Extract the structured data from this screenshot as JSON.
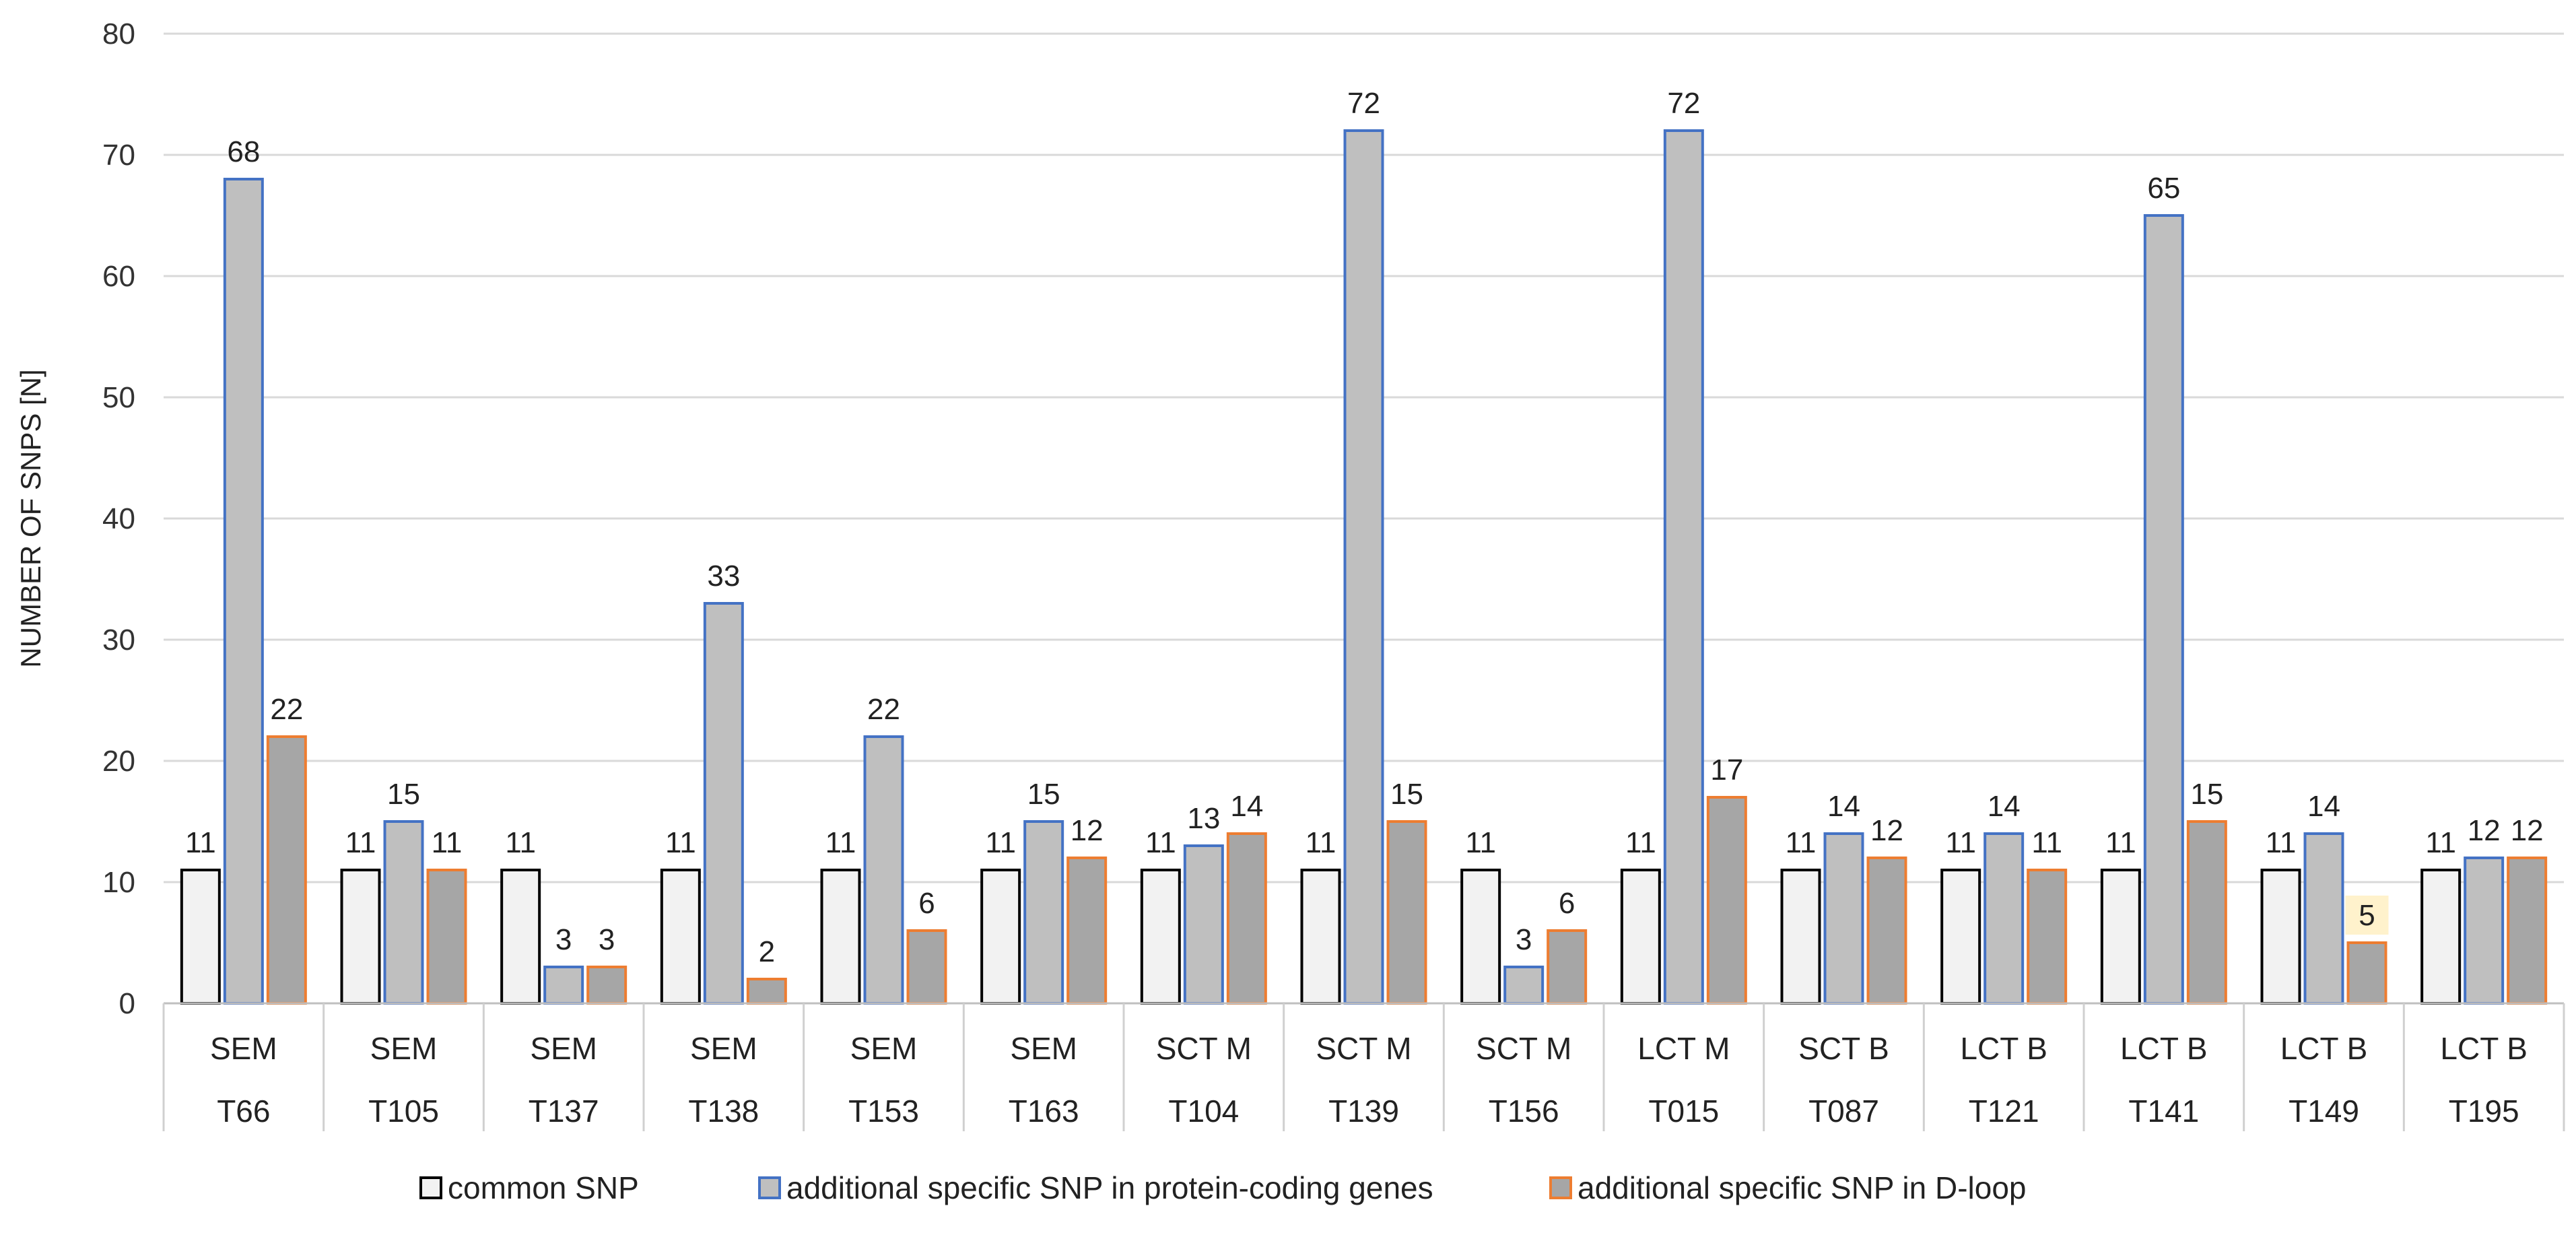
{
  "chart_data": {
    "type": "bar",
    "ylabel": "NUMBER OF SNPS [N]",
    "ylim": [
      0,
      80
    ],
    "yticks": [
      0,
      10,
      20,
      30,
      40,
      50,
      60,
      70,
      80
    ],
    "grid": true,
    "legend_position": "bottom",
    "categories": [
      {
        "group": "SEM",
        "sample": "T66"
      },
      {
        "group": "SEM",
        "sample": "T105"
      },
      {
        "group": "SEM",
        "sample": "T137"
      },
      {
        "group": "SEM",
        "sample": "T138"
      },
      {
        "group": "SEM",
        "sample": "T153"
      },
      {
        "group": "SEM",
        "sample": "T163"
      },
      {
        "group": "SCT M",
        "sample": "T104"
      },
      {
        "group": "SCT M",
        "sample": "T139"
      },
      {
        "group": "SCT M",
        "sample": "T156"
      },
      {
        "group": "LCT M",
        "sample": "T015"
      },
      {
        "group": "SCT B",
        "sample": "T087"
      },
      {
        "group": "LCT B",
        "sample": "T121"
      },
      {
        "group": "LCT B",
        "sample": "T141"
      },
      {
        "group": "LCT B",
        "sample": "T149"
      },
      {
        "group": "LCT B",
        "sample": "T195"
      }
    ],
    "series": [
      {
        "name": "common SNP",
        "fill": "#f2f2f2",
        "stroke": "#000000",
        "values": [
          11,
          11,
          11,
          11,
          11,
          11,
          11,
          11,
          11,
          11,
          11,
          11,
          11,
          11,
          11
        ]
      },
      {
        "name": "additional specific SNP in protein-coding genes",
        "fill": "#bfbfbf",
        "stroke": "#4472c4",
        "values": [
          68,
          15,
          3,
          33,
          22,
          15,
          13,
          72,
          3,
          72,
          14,
          14,
          65,
          14,
          12
        ]
      },
      {
        "name": "additional specific SNP in D-loop",
        "fill": "#a6a6a6",
        "stroke": "#ed7d31",
        "values": [
          22,
          11,
          3,
          2,
          6,
          12,
          14,
          15,
          6,
          17,
          12,
          11,
          15,
          5,
          12
        ]
      }
    ],
    "highlighted_label": {
      "series": 2,
      "index": 13,
      "color": "#fff2cc"
    }
  }
}
